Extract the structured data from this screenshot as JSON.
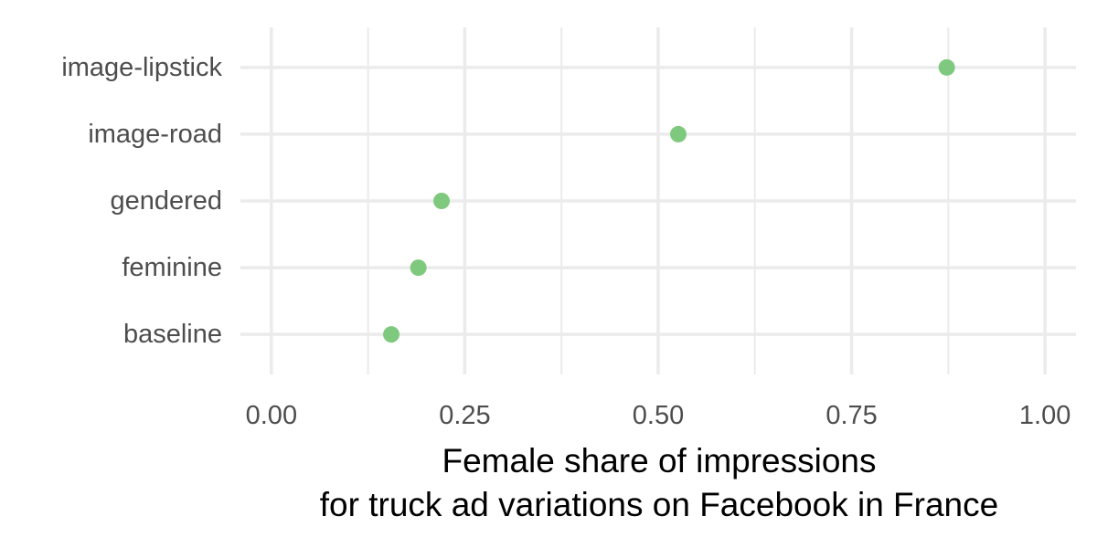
{
  "chart_data": {
    "type": "scatter",
    "title": "",
    "xlabel": [
      "Female share of impressions",
      "for truck ad variations on Facebook in France"
    ],
    "ylabel": "",
    "xlim": [
      -0.04,
      1.04
    ],
    "x_ticks": [
      0.0,
      0.25,
      0.5,
      0.75,
      1.0
    ],
    "x_tick_labels": [
      "0.00",
      "0.25",
      "0.50",
      "0.75",
      "1.00"
    ],
    "categories": [
      "baseline",
      "feminine",
      "gendered",
      "image-road",
      "image-lipstick"
    ],
    "values": [
      0.155,
      0.19,
      0.22,
      0.526,
      0.873
    ],
    "grid": true,
    "legend": "none",
    "point_color": "#7fc97f"
  }
}
